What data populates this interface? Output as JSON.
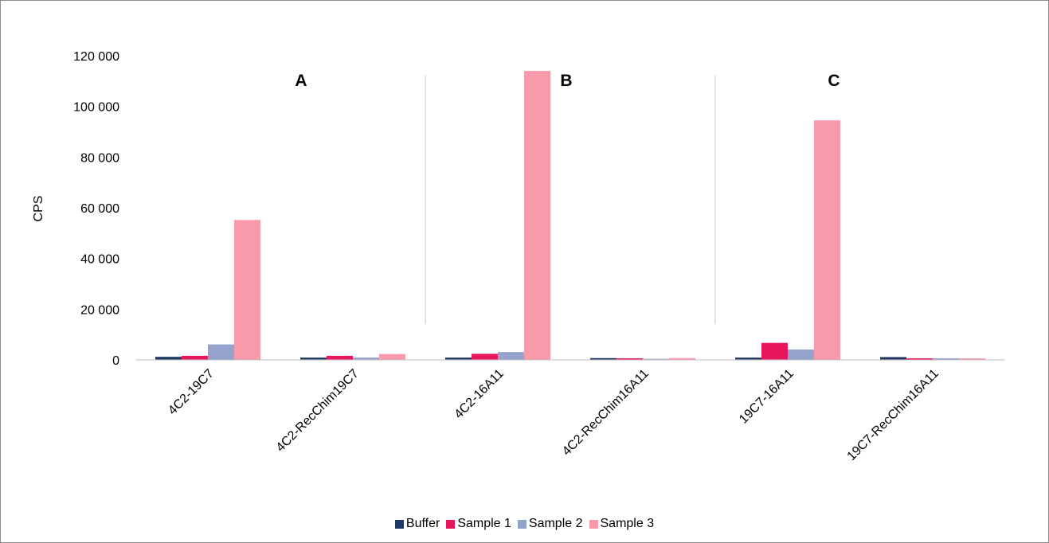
{
  "chart_data": {
    "type": "bar",
    "ylabel": "CPS",
    "ylim": [
      0,
      120000
    ],
    "yticks": [
      "0",
      "20 000",
      "40 000",
      "60 000",
      "80 000",
      "100 000",
      "120 000"
    ],
    "categories": [
      "4C2-19C7",
      "4C2-RecChim19C7",
      "4C2-16A11",
      "4C2-RecChim16A11",
      "19C7-16A11",
      "19C7-RecChim16A11"
    ],
    "series": [
      {
        "name": "Buffer",
        "color": "#1f3864",
        "values": [
          1200,
          900,
          900,
          700,
          900,
          1100
        ]
      },
      {
        "name": "Sample 1",
        "color": "#e8175d",
        "values": [
          1600,
          1600,
          2400,
          600,
          6700,
          600
        ]
      },
      {
        "name": "Sample 2",
        "color": "#95a3cc",
        "values": [
          6100,
          900,
          3100,
          400,
          4100,
          600
        ]
      },
      {
        "name": "Sample 3",
        "color": "#f99aaa",
        "values": [
          55200,
          2300,
          114000,
          700,
          94500,
          600
        ]
      }
    ],
    "sections": [
      "A",
      "B",
      "C"
    ],
    "legend_position": "bottom",
    "grid": false
  }
}
